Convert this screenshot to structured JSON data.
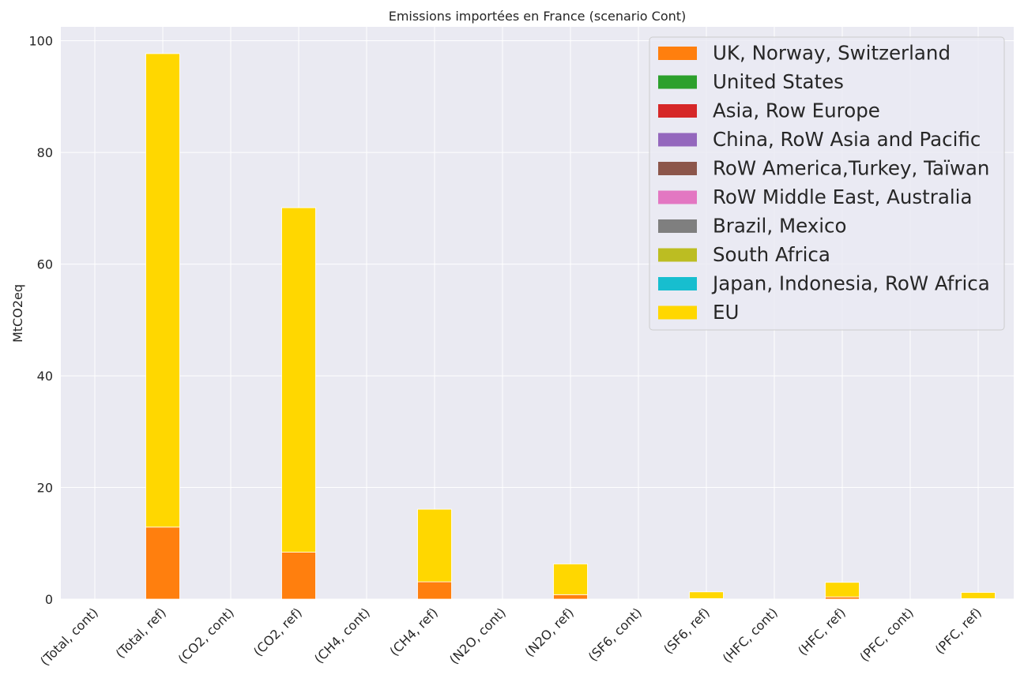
{
  "chart_data": {
    "type": "bar",
    "stacked": true,
    "title": "Emissions importées en France (scenario Cont)",
    "xlabel": "",
    "ylabel": "MtCO2eq",
    "ylim": [
      0,
      102.5
    ],
    "yticks": [
      0,
      20,
      40,
      60,
      80,
      100
    ],
    "grid": true,
    "legend_position": "top-right",
    "categories": [
      "(Total, cont)",
      "(Total, ref)",
      "(CO2, cont)",
      "(CO2, ref)",
      "(CH4, cont)",
      "(CH4, ref)",
      "(N2O, cont)",
      "(N2O, ref)",
      "(SF6, cont)",
      "(SF6, ref)",
      "(HFC, cont)",
      "(HFC, ref)",
      "(PFC, cont)",
      "(PFC, ref)"
    ],
    "series": [
      {
        "name": "UK, Norway, Switzerland",
        "color": "#ff7f0e",
        "values": [
          0,
          12.9,
          0,
          8.4,
          0,
          3.1,
          0,
          0.8,
          0,
          0.1,
          0,
          0.4,
          0,
          0.1
        ]
      },
      {
        "name": "United States",
        "color": "#2ca02c",
        "values": [
          0,
          0,
          0,
          0,
          0,
          0,
          0,
          0,
          0,
          0,
          0,
          0,
          0,
          0
        ]
      },
      {
        "name": "Asia, Row Europe",
        "color": "#d62728",
        "values": [
          0,
          0,
          0,
          0,
          0,
          0,
          0,
          0,
          0,
          0,
          0,
          0,
          0,
          0
        ]
      },
      {
        "name": "China, RoW Asia and Pacific",
        "color": "#9467bd",
        "values": [
          0,
          0,
          0,
          0,
          0,
          0,
          0,
          0,
          0,
          0,
          0,
          0,
          0,
          0
        ]
      },
      {
        "name": "RoW America,Turkey, Taïwan",
        "color": "#8c564b",
        "values": [
          0,
          0,
          0,
          0,
          0,
          0,
          0,
          0,
          0,
          0,
          0,
          0,
          0,
          0
        ]
      },
      {
        "name": "RoW Middle East, Australia",
        "color": "#e377c2",
        "values": [
          0,
          0,
          0,
          0,
          0,
          0,
          0,
          0,
          0,
          0,
          0,
          0,
          0,
          0
        ]
      },
      {
        "name": "Brazil, Mexico",
        "color": "#7f7f7f",
        "values": [
          0,
          0,
          0,
          0,
          0,
          0,
          0,
          0,
          0,
          0,
          0,
          0,
          0,
          0
        ]
      },
      {
        "name": "South Africa",
        "color": "#bcbd22",
        "values": [
          0,
          0,
          0,
          0,
          0,
          0,
          0,
          0,
          0,
          0,
          0,
          0,
          0,
          0
        ]
      },
      {
        "name": "Japan, Indonesia, RoW Africa",
        "color": "#17becf",
        "values": [
          0,
          0,
          0,
          0,
          0,
          0,
          0,
          0,
          0,
          0,
          0,
          0,
          0,
          0
        ]
      },
      {
        "name": "EU",
        "color": "#ffd700",
        "values": [
          0,
          84.8,
          0,
          61.7,
          0,
          13.0,
          0,
          5.5,
          0,
          1.2,
          0,
          2.6,
          0,
          1.1
        ]
      }
    ]
  }
}
